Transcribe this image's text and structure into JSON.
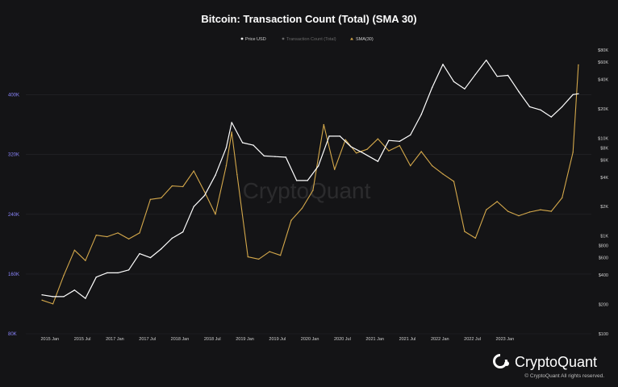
{
  "chart_data": {
    "type": "line",
    "title": "Bitcoin: Transaction Count (Total) (SMA 30)",
    "legend": {
      "placement": "top-center",
      "entries": [
        {
          "label": "Price USD",
          "color": "#ffffff"
        },
        {
          "label": "Transaction Count (Total)",
          "color": "#6a6a6a"
        },
        {
          "label": "SMA(30)",
          "color": "#d4a84b"
        }
      ]
    },
    "x_ticks": [
      "2015 Jan",
      "2015 Jul",
      "2017 Jan",
      "2017 Jul",
      "2018 Jan",
      "2018 Jul",
      "2019 Jan",
      "2019 Jul",
      "2020 Jan",
      "2020 Jul",
      "2021 Jan",
      "2021 Jul",
      "2022 Jan",
      "2022 Jul",
      "2023 Jan"
    ],
    "left_axis": {
      "ticks": [
        "80K",
        "160K",
        "240K",
        "320K",
        "400K"
      ],
      "values": [
        80000,
        160000,
        240000,
        320000,
        400000
      ],
      "range": [
        80000,
        460000
      ]
    },
    "right_axis": {
      "scale": "log",
      "ticks": [
        "$100",
        "$200",
        "$400",
        "$600",
        "$800",
        "$1K",
        "$2K",
        "$4K",
        "$6K",
        "$8K",
        "$10K",
        "$20K",
        "$40K",
        "$60K",
        "$80K"
      ],
      "values": [
        100,
        200,
        400,
        600,
        800,
        1000,
        2000,
        4000,
        6000,
        8000,
        10000,
        20000,
        40000,
        60000,
        80000
      ],
      "range": [
        100,
        80000
      ]
    },
    "grid": {
      "horizontal": true,
      "vertical": false
    },
    "series": [
      {
        "name": "Price USD",
        "axis": "right",
        "color": "#ffffff",
        "x": [
          "2015-01",
          "2015-03",
          "2015-05",
          "2015-07",
          "2015-09",
          "2015-11",
          "2016-01",
          "2016-03",
          "2016-05",
          "2016-07",
          "2016-09",
          "2016-11",
          "2017-01",
          "2017-03",
          "2017-05",
          "2017-07",
          "2017-09",
          "2017-11",
          "2017-12",
          "2018-02",
          "2018-04",
          "2018-06",
          "2018-08",
          "2018-10",
          "2018-12",
          "2019-02",
          "2019-04",
          "2019-06",
          "2019-08",
          "2019-10",
          "2019-12",
          "2020-03",
          "2020-05",
          "2020-07",
          "2020-09",
          "2020-11",
          "2021-01",
          "2021-03",
          "2021-05",
          "2021-07",
          "2021-09",
          "2021-11",
          "2022-01",
          "2022-03",
          "2022-05",
          "2022-07",
          "2022-09",
          "2022-11",
          "2023-01",
          "2023-03",
          "2023-04"
        ],
        "values": [
          250,
          240,
          240,
          280,
          230,
          380,
          420,
          420,
          450,
          660,
          600,
          740,
          950,
          1100,
          2000,
          2600,
          4200,
          8000,
          14500,
          9000,
          8500,
          6600,
          6500,
          6400,
          3700,
          3700,
          5200,
          10500,
          10500,
          8200,
          7200,
          5800,
          9500,
          9300,
          10800,
          17500,
          33000,
          57000,
          38000,
          32000,
          45000,
          63000,
          43000,
          44000,
          30000,
          21000,
          19500,
          16500,
          21000,
          28000,
          28500
        ]
      },
      {
        "name": "SMA(30)",
        "axis": "left",
        "color": "#d4a84b",
        "x": [
          "2015-01",
          "2015-03",
          "2015-05",
          "2015-07",
          "2015-09",
          "2015-11",
          "2016-01",
          "2016-03",
          "2016-05",
          "2016-07",
          "2016-09",
          "2016-11",
          "2017-01",
          "2017-03",
          "2017-05",
          "2017-07",
          "2017-09",
          "2017-11",
          "2017-12",
          "2018-01",
          "2018-03",
          "2018-05",
          "2018-07",
          "2018-09",
          "2018-11",
          "2019-01",
          "2019-03",
          "2019-05",
          "2019-07",
          "2019-09",
          "2019-11",
          "2020-01",
          "2020-03",
          "2020-05",
          "2020-07",
          "2020-09",
          "2020-11",
          "2021-01",
          "2021-03",
          "2021-05",
          "2021-07",
          "2021-09",
          "2021-11",
          "2022-01",
          "2022-03",
          "2022-05",
          "2022-07",
          "2022-09",
          "2022-11",
          "2023-01",
          "2023-03",
          "2023-04"
        ],
        "values": [
          125000,
          120000,
          158000,
          192000,
          178000,
          212000,
          210000,
          215000,
          207000,
          215000,
          260000,
          262000,
          278000,
          277000,
          298000,
          270000,
          240000,
          305000,
          350000,
          293000,
          183000,
          180000,
          190000,
          185000,
          232000,
          248000,
          272000,
          360000,
          300000,
          340000,
          322000,
          327000,
          341000,
          325000,
          332000,
          305000,
          324000,
          305000,
          294000,
          284000,
          217000,
          208000,
          246000,
          257000,
          244000,
          238000,
          243000,
          246000,
          244000,
          262000,
          323000,
          440000
        ]
      }
    ],
    "watermark": "CryptoQuant"
  },
  "brand": {
    "name": "CryptoQuant",
    "copyright": "© CryptoQuant All rights reserved."
  }
}
